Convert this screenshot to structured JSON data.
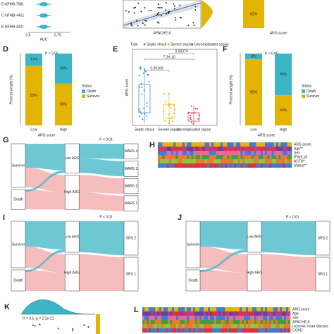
{
  "panels": {
    "a": {
      "labels": [
        "E-NFMB-7581",
        "C-NFMB-4451",
        "E-NFMB-4421"
      ],
      "xticks": [
        "0.5",
        "0.75"
      ],
      "xlabel": "AUC"
    },
    "b": {
      "xlabel": "APACHE-II"
    },
    "c": {
      "xlabel": "ARG score",
      "label": "62%"
    },
    "d": {
      "letter": "D",
      "p": "P < 0.05",
      "categories": [
        "Low",
        "High"
      ],
      "series": [
        {
          "name": "Death",
          "color": "#3cb6c6",
          "values": [
            17,
            42
          ],
          "value_labels": [
            "17%",
            "42%"
          ]
        },
        {
          "name": "Survivor",
          "color": "#e4b404",
          "values": [
            83,
            58
          ],
          "value_labels": [
            "83%",
            "58%"
          ]
        }
      ],
      "legend_title": "Status",
      "xlabel": "ARG score",
      "ylabel": "Percent weight (%)"
    },
    "e": {
      "letter": "E",
      "legend_title": "Type",
      "types": [
        "Septic shock",
        "Severe sepsis",
        "Uncomplicated sepsis"
      ],
      "colors": [
        "#3b7fd4",
        "#e4b404",
        "#d9333f"
      ],
      "pvalues": [
        "0.00109",
        "7.2e-10",
        "0.00374"
      ],
      "ylabel": "ARG score"
    },
    "f": {
      "letter": "F",
      "p": "P < 0.05",
      "categories": [
        "Low",
        "High"
      ],
      "series": [
        {
          "name": "Death",
          "color": "#3cb6c6",
          "values": [
            8,
            58
          ],
          "value_labels": [
            "8%",
            "58%"
          ]
        },
        {
          "name": "Survivor",
          "color": "#e4b404",
          "values": [
            92,
            42
          ],
          "value_labels": [
            "92%",
            "42%"
          ]
        }
      ],
      "legend_title": "Status",
      "xlabel": "ARG score",
      "ylabel": "Percent weight (%)"
    },
    "g": {
      "letter": "G",
      "p": "P < 0.01",
      "left": [
        "Survivor",
        "Death"
      ],
      "middle": [
        "Low ARG",
        "High ARG"
      ],
      "right": [
        "MARS 4",
        "MARS 3",
        "MARS 2",
        "MARS 1"
      ]
    },
    "h": {
      "letter": "H",
      "rows": [
        "ARG score",
        "Age**",
        "Sex",
        "IFN/IL10",
        "ACTH*",
        "Status**"
      ]
    },
    "i": {
      "letter": "I",
      "p": "P < 0.01",
      "left": [
        "Survivor",
        "Death"
      ],
      "middle": [
        "Low ARG",
        "High ARG"
      ],
      "right": [
        "SRS 2",
        "SRS 1"
      ]
    },
    "j": {
      "letter": "J",
      "p": "P < 0.01",
      "left": [
        "Survivor",
        "Death"
      ],
      "middle": [
        "Low ARG",
        "High ARG"
      ],
      "right": [
        "SRS 2",
        "SRS 1"
      ]
    },
    "k": {
      "letter": "K",
      "stat": "R = 0.5, p = 2.1e-21"
    },
    "l": {
      "letter": "L",
      "rows": [
        "ARG score",
        "Age",
        "Sex",
        "APACHE-II",
        "Ischemic heart disease",
        "COPD"
      ]
    }
  }
}
